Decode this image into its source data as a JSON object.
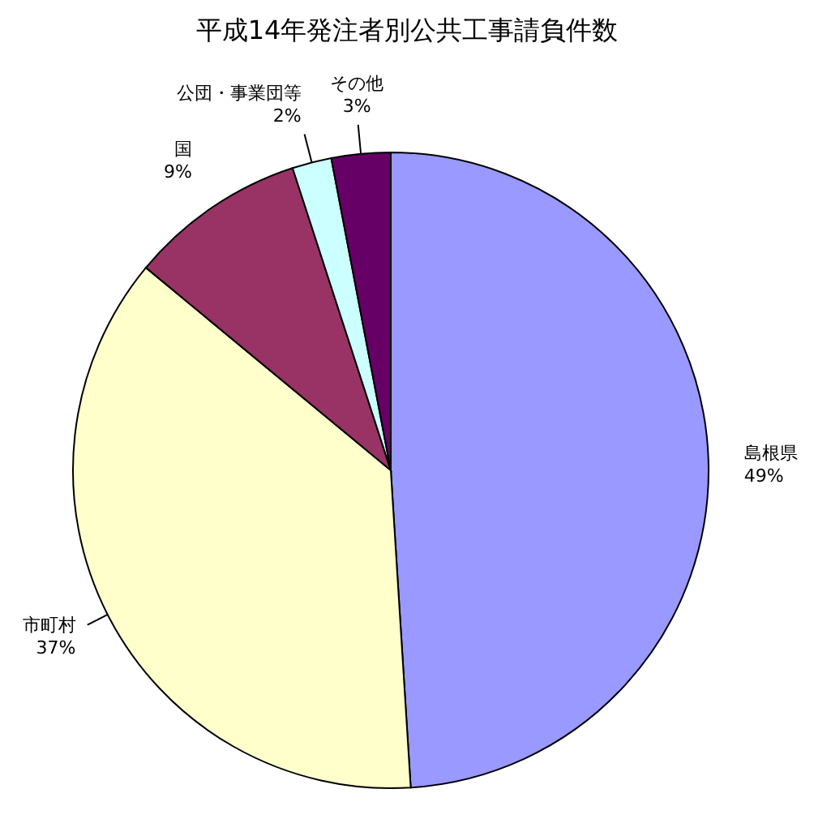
{
  "chart_data": {
    "type": "pie",
    "title": "平成14年発注者別公共工事請負件数",
    "categories": [
      "島根県",
      "市町村",
      "国",
      "公団・事業団等",
      "その他"
    ],
    "values": [
      49,
      37,
      9,
      2,
      3
    ],
    "colors": [
      "#9999ff",
      "#ffffcc",
      "#993366",
      "#ccffff",
      "#660066"
    ],
    "value_labels": [
      "49%",
      "37%",
      "9%",
      "2%",
      "3%"
    ]
  }
}
